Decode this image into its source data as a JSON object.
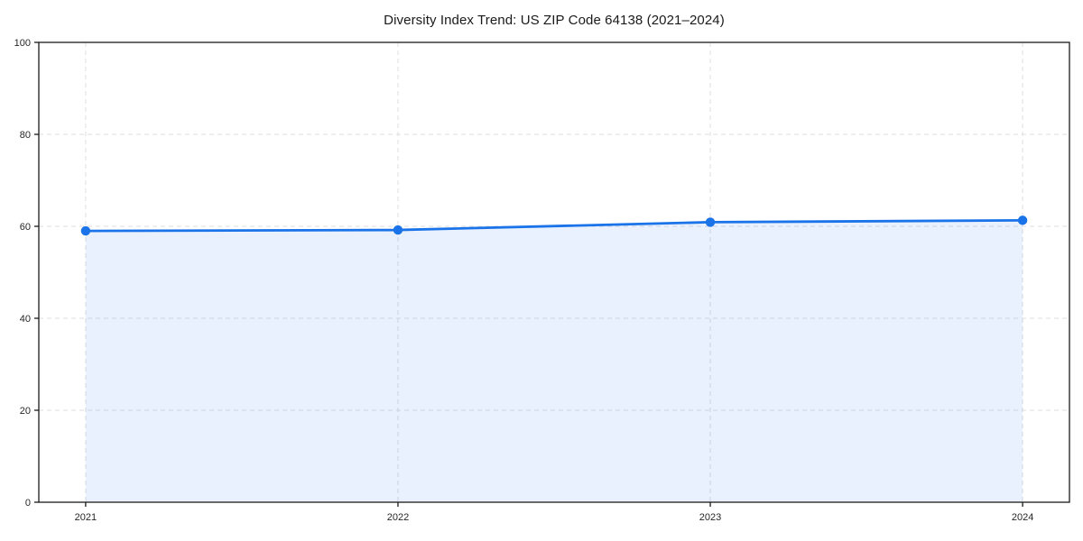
{
  "chart_data": {
    "type": "area",
    "title": "Diversity Index Trend: US ZIP Code 64138 (2021–2024)",
    "x": [
      2021,
      2022,
      2023,
      2024
    ],
    "x_tick_labels": [
      "2021",
      "2022",
      "2023",
      "2024"
    ],
    "series": [
      {
        "name": "Diversity Index",
        "values": [
          59.0,
          59.2,
          60.9,
          61.3
        ]
      }
    ],
    "xlabel": "",
    "ylabel": "",
    "xlim": [
      2020.85,
      2024.15
    ],
    "ylim": [
      0,
      100
    ],
    "y_ticks": [
      0,
      20,
      40,
      60,
      80,
      100
    ],
    "grid": "on",
    "grid_style": "dashed",
    "legend": "none",
    "marker": "circle",
    "colors": {
      "line": "#1a73e8",
      "marker": "#1a73e8",
      "fill": "rgba(26,115,232,0.10)",
      "grid": "#dedede",
      "frame": "#1a1a1a",
      "tick_label": "#262626",
      "title": "#1a1a1a",
      "background": "#ffffff"
    }
  }
}
